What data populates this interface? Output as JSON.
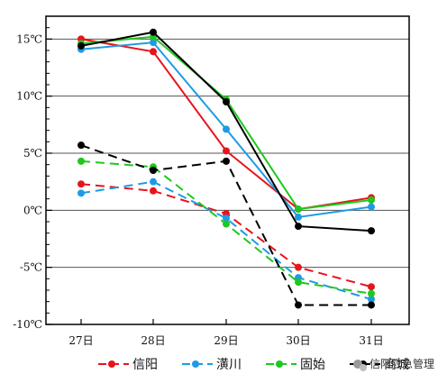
{
  "chart_data": {
    "type": "line",
    "categories": [
      "27日",
      "28日",
      "29日",
      "30日",
      "31日"
    ],
    "ylim": [
      -10,
      17
    ],
    "yticks": [
      15,
      10,
      5,
      0,
      -5,
      -10
    ],
    "ytick_labels": [
      "15℃",
      "10℃",
      "5℃",
      "0℃",
      "-5℃",
      "-10℃"
    ],
    "grid": true,
    "legend_position": "bottom",
    "series": [
      {
        "name": "信阳",
        "group": "high",
        "style": "solid",
        "color": "#e8141c",
        "values": [
          15.0,
          13.9,
          5.2,
          0.1,
          1.1
        ]
      },
      {
        "name": "潢川",
        "group": "high",
        "style": "solid",
        "color": "#1e9be6",
        "values": [
          14.1,
          14.7,
          7.1,
          -0.6,
          0.3
        ]
      },
      {
        "name": "固始",
        "group": "high",
        "style": "solid",
        "color": "#1ec81e",
        "values": [
          14.6,
          15.2,
          9.7,
          0.1,
          0.9
        ]
      },
      {
        "name": "商城",
        "group": "high",
        "style": "solid",
        "color": "#000000",
        "values": [
          14.4,
          15.6,
          9.5,
          -1.4,
          -1.8
        ]
      },
      {
        "name": "信阳",
        "group": "low",
        "style": "dashed",
        "color": "#e8141c",
        "values": [
          2.3,
          1.7,
          -0.3,
          -5.0,
          -6.7
        ]
      },
      {
        "name": "潢川",
        "group": "low",
        "style": "dashed",
        "color": "#1e9be6",
        "values": [
          1.5,
          2.5,
          -0.7,
          -5.9,
          -7.8
        ]
      },
      {
        "name": "固始",
        "group": "low",
        "style": "dashed",
        "color": "#1ec81e",
        "values": [
          4.3,
          3.8,
          -1.2,
          -6.3,
          -7.3
        ]
      },
      {
        "name": "商城",
        "group": "low",
        "style": "dashed",
        "color": "#000000",
        "values": [
          5.7,
          3.5,
          4.3,
          -8.3,
          -8.3
        ]
      }
    ],
    "legend": [
      {
        "label": "信阳",
        "color": "#e8141c"
      },
      {
        "label": "潢川",
        "color": "#1e9be6"
      },
      {
        "label": "固始",
        "color": "#1ec81e"
      },
      {
        "label": "商城",
        "color": "#000000"
      }
    ]
  },
  "watermark": {
    "text": "信阳应急管理",
    "icon": "wechat-icon"
  }
}
